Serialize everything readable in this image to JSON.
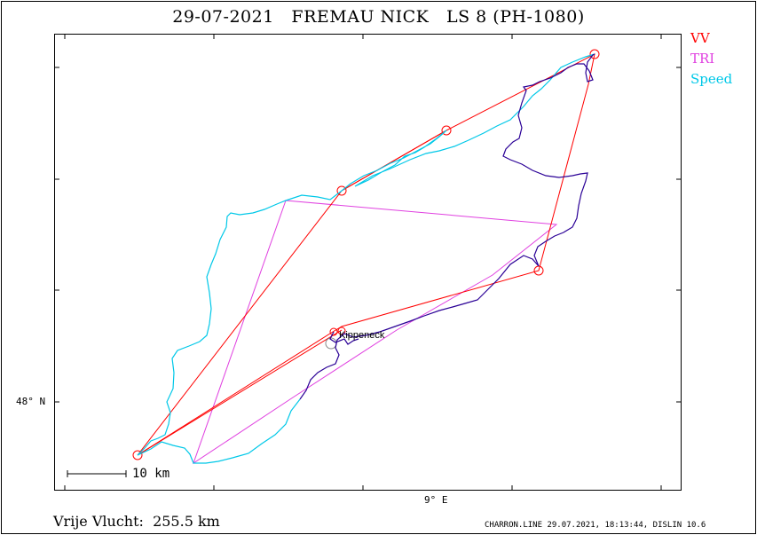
{
  "header": {
    "title": "29-07-2021   FREMAU NICK   LS 8 (PH-1080)"
  },
  "legend": [
    {
      "label": "VV",
      "color": "#ff0000"
    },
    {
      "label": "TRI",
      "color": "#e040e0"
    },
    {
      "label": "Speed",
      "color": "#00c8e8"
    }
  ],
  "axes": {
    "latitude_label": "48° N",
    "longitude_label": "9° E"
  },
  "scale": {
    "label": "10 km"
  },
  "waypoint": {
    "name": "Kippeneck"
  },
  "summary": {
    "text": "Vrije Vlucht:  255.5 km"
  },
  "footer": {
    "text": "CHARRON.LINE 29.07.2021, 18:13:44, DISLIN 10.6"
  },
  "colors": {
    "vv": "#ff0000",
    "tri": "#e040e0",
    "speed": "#00c8e8",
    "track": "#2a0096"
  }
}
